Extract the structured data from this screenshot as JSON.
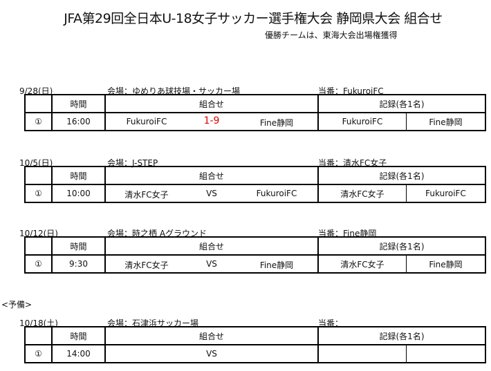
{
  "title": "JFA第29回全日本U-18女子サッカー選手権大会 静岡県大会 組合せ",
  "subtitle": "優勝チームは、東海大会出場権獲得",
  "headers": {
    "no": "",
    "time": "時間",
    "match": "組合せ",
    "record": "記録(各1名)"
  },
  "reserve_label": "<予備>",
  "accent_color": "#e00000",
  "sections": [
    {
      "date": "9/28(日)",
      "venue": "会場：ゆめりあ球技場・サッカー場",
      "duty": "当番：FukuroiFC",
      "game": {
        "no": "①",
        "time": "16:00",
        "home": "FukuroiFC",
        "result": "1-9",
        "away": "Fine静岡",
        "record1": "FukuroiFC",
        "record2": "Fine静岡"
      }
    },
    {
      "date": "10/5(日)",
      "venue": "会場：J-STEP",
      "duty": "当番：清水FC女子",
      "game": {
        "no": "①",
        "time": "10:00",
        "home": "清水FC女子",
        "result": "VS",
        "away": "FukuroiFC",
        "record1": "清水FC女子",
        "record2": "FukuroiFC"
      }
    },
    {
      "date": "10/12(日)",
      "venue": "会場：時之栖 Aグラウンド",
      "duty": "当番：Fine静岡",
      "game": {
        "no": "①",
        "time": "9:30",
        "home": "清水FC女子",
        "result": "VS",
        "away": "Fine静岡",
        "record1": "清水FC女子",
        "record2": "Fine静岡"
      }
    },
    {
      "date": "10/18(土)",
      "venue": "会場：石津浜サッカー場",
      "duty": "当番：",
      "game": {
        "no": "①",
        "time": "14:00",
        "home": "",
        "result": "VS",
        "away": "",
        "record1": "",
        "record2": ""
      }
    }
  ]
}
